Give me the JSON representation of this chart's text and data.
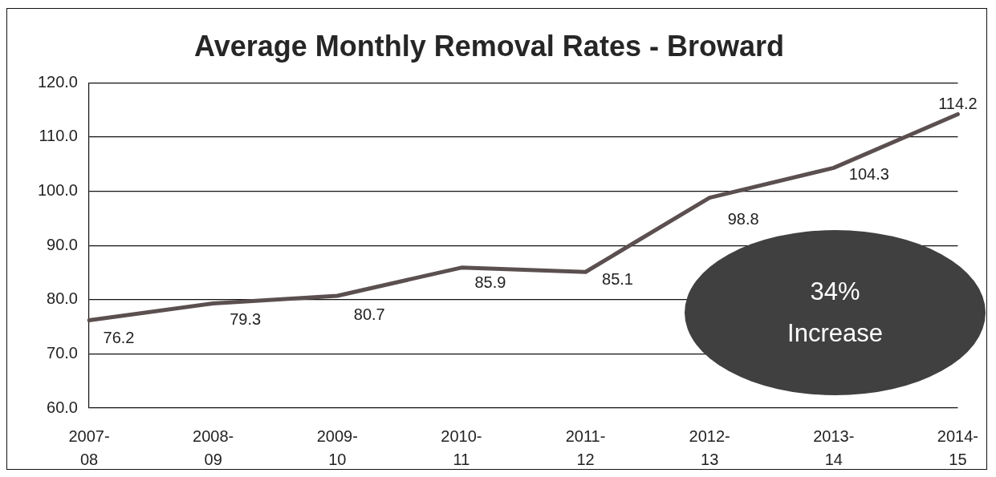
{
  "chart_data": {
    "type": "line",
    "title": "Average Monthly Removal Rates - Broward",
    "categories": [
      "2007-08",
      "2008-09",
      "2009-10",
      "2010-11",
      "2011-12",
      "2012-13",
      "2013-14",
      "2014-15"
    ],
    "values": [
      76.2,
      79.3,
      80.7,
      85.9,
      85.1,
      98.8,
      104.3,
      114.2
    ],
    "color": "#5b4f50",
    "ylim": [
      60,
      120
    ],
    "yticks": [
      {
        "value": 60,
        "label": "60.0"
      },
      {
        "value": 70,
        "label": "70.0"
      },
      {
        "value": 80,
        "label": "80.0"
      },
      {
        "value": 90,
        "label": "90.0"
      },
      {
        "value": 100,
        "label": "100.0"
      },
      {
        "value": 110,
        "label": "110.0"
      },
      {
        "value": 120,
        "label": "120.0"
      }
    ],
    "grid": "y",
    "legend": false,
    "marker": "none",
    "data_labels": true,
    "annotations": [
      "34% Increase"
    ]
  }
}
